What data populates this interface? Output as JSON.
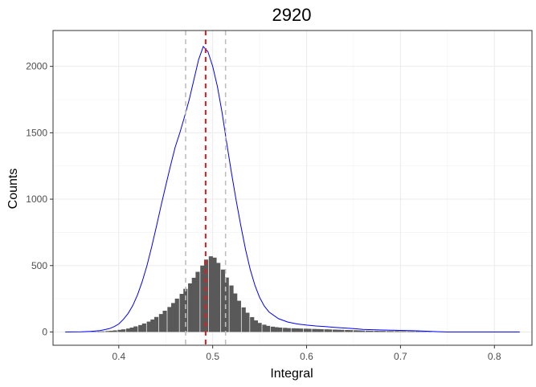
{
  "chart_data": {
    "type": "histogram",
    "title": "2920",
    "xlabel": "Integral",
    "ylabel": "Counts",
    "xlim": [
      0.33,
      0.84
    ],
    "ylim": [
      -100,
      2270
    ],
    "x_ticks": [
      0.4,
      0.5,
      0.6,
      0.7,
      0.8
    ],
    "y_ticks": [
      0,
      500,
      1000,
      1500,
      2000
    ],
    "grid": true,
    "bar_color": "#595959",
    "curve_color": "#0000ff",
    "histogram": {
      "bin_width": 0.0044,
      "bins": [
        [
          0.37,
          2
        ],
        [
          0.374,
          3
        ],
        [
          0.379,
          4
        ],
        [
          0.383,
          5
        ],
        [
          0.388,
          7
        ],
        [
          0.392,
          9
        ],
        [
          0.396,
          12
        ],
        [
          0.401,
          16
        ],
        [
          0.405,
          20
        ],
        [
          0.41,
          26
        ],
        [
          0.414,
          33
        ],
        [
          0.418,
          42
        ],
        [
          0.423,
          52
        ],
        [
          0.427,
          64
        ],
        [
          0.432,
          78
        ],
        [
          0.436,
          94
        ],
        [
          0.44,
          113
        ],
        [
          0.445,
          135
        ],
        [
          0.449,
          160
        ],
        [
          0.454,
          188
        ],
        [
          0.458,
          218
        ],
        [
          0.462,
          251
        ],
        [
          0.467,
          287
        ],
        [
          0.471,
          325
        ],
        [
          0.476,
          366
        ],
        [
          0.48,
          408
        ],
        [
          0.484,
          453
        ],
        [
          0.489,
          500
        ],
        [
          0.493,
          545
        ],
        [
          0.498,
          570
        ],
        [
          0.502,
          560
        ],
        [
          0.506,
          520
        ],
        [
          0.511,
          470
        ],
        [
          0.515,
          410
        ],
        [
          0.52,
          350
        ],
        [
          0.524,
          290
        ],
        [
          0.528,
          235
        ],
        [
          0.533,
          185
        ],
        [
          0.537,
          145
        ],
        [
          0.542,
          112
        ],
        [
          0.546,
          87
        ],
        [
          0.55,
          68
        ],
        [
          0.555,
          55
        ],
        [
          0.559,
          46
        ],
        [
          0.564,
          40
        ],
        [
          0.568,
          36
        ],
        [
          0.572,
          33
        ],
        [
          0.577,
          31
        ],
        [
          0.581,
          29
        ],
        [
          0.586,
          28
        ],
        [
          0.59,
          27
        ],
        [
          0.594,
          26
        ],
        [
          0.599,
          25
        ],
        [
          0.603,
          24
        ],
        [
          0.608,
          23
        ],
        [
          0.612,
          22
        ],
        [
          0.616,
          21
        ],
        [
          0.621,
          20
        ],
        [
          0.625,
          19
        ],
        [
          0.63,
          18
        ],
        [
          0.634,
          17
        ],
        [
          0.638,
          16
        ],
        [
          0.643,
          15
        ],
        [
          0.647,
          14
        ],
        [
          0.652,
          13
        ],
        [
          0.656,
          12
        ],
        [
          0.66,
          11
        ],
        [
          0.665,
          10
        ],
        [
          0.669,
          9
        ],
        [
          0.674,
          9
        ],
        [
          0.678,
          8
        ],
        [
          0.682,
          8
        ],
        [
          0.687,
          7
        ],
        [
          0.691,
          7
        ],
        [
          0.696,
          7
        ],
        [
          0.7,
          6
        ],
        [
          0.704,
          6
        ],
        [
          0.709,
          5
        ],
        [
          0.713,
          5
        ],
        [
          0.718,
          5
        ],
        [
          0.722,
          4
        ],
        [
          0.726,
          4
        ],
        [
          0.731,
          3
        ]
      ]
    },
    "density_curve": {
      "points": [
        [
          0.343,
          0
        ],
        [
          0.36,
          1
        ],
        [
          0.37,
          4
        ],
        [
          0.38,
          10
        ],
        [
          0.39,
          25
        ],
        [
          0.395,
          40
        ],
        [
          0.4,
          60
        ],
        [
          0.405,
          95
        ],
        [
          0.41,
          140
        ],
        [
          0.415,
          200
        ],
        [
          0.42,
          280
        ],
        [
          0.425,
          380
        ],
        [
          0.43,
          500
        ],
        [
          0.435,
          640
        ],
        [
          0.44,
          790
        ],
        [
          0.445,
          950
        ],
        [
          0.45,
          1100
        ],
        [
          0.455,
          1250
        ],
        [
          0.46,
          1390
        ],
        [
          0.465,
          1500
        ],
        [
          0.47,
          1620
        ],
        [
          0.475,
          1750
        ],
        [
          0.48,
          1900
        ],
        [
          0.485,
          2050
        ],
        [
          0.49,
          2150
        ],
        [
          0.495,
          2110
        ],
        [
          0.5,
          2000
        ],
        [
          0.505,
          1850
        ],
        [
          0.51,
          1650
        ],
        [
          0.515,
          1420
        ],
        [
          0.52,
          1200
        ],
        [
          0.525,
          990
        ],
        [
          0.53,
          800
        ],
        [
          0.535,
          620
        ],
        [
          0.54,
          470
        ],
        [
          0.545,
          350
        ],
        [
          0.55,
          260
        ],
        [
          0.555,
          195
        ],
        [
          0.56,
          150
        ],
        [
          0.57,
          100
        ],
        [
          0.58,
          75
        ],
        [
          0.59,
          60
        ],
        [
          0.6,
          52
        ],
        [
          0.61,
          45
        ],
        [
          0.62,
          40
        ],
        [
          0.63,
          35
        ],
        [
          0.64,
          30
        ],
        [
          0.65,
          25
        ],
        [
          0.66,
          20
        ],
        [
          0.67,
          17
        ],
        [
          0.68,
          15
        ],
        [
          0.69,
          13
        ],
        [
          0.7,
          12
        ],
        [
          0.71,
          10
        ],
        [
          0.72,
          8
        ],
        [
          0.73,
          5
        ],
        [
          0.74,
          2
        ],
        [
          0.75,
          0
        ],
        [
          0.827,
          0
        ]
      ]
    },
    "vlines": [
      {
        "x": 0.4925,
        "color": "#e41a1c",
        "style": "dashed"
      },
      {
        "x": 0.4712,
        "color": "#bebebe",
        "style": "dashed"
      },
      {
        "x": 0.5137,
        "color": "#bebebe",
        "style": "dashed"
      }
    ]
  }
}
